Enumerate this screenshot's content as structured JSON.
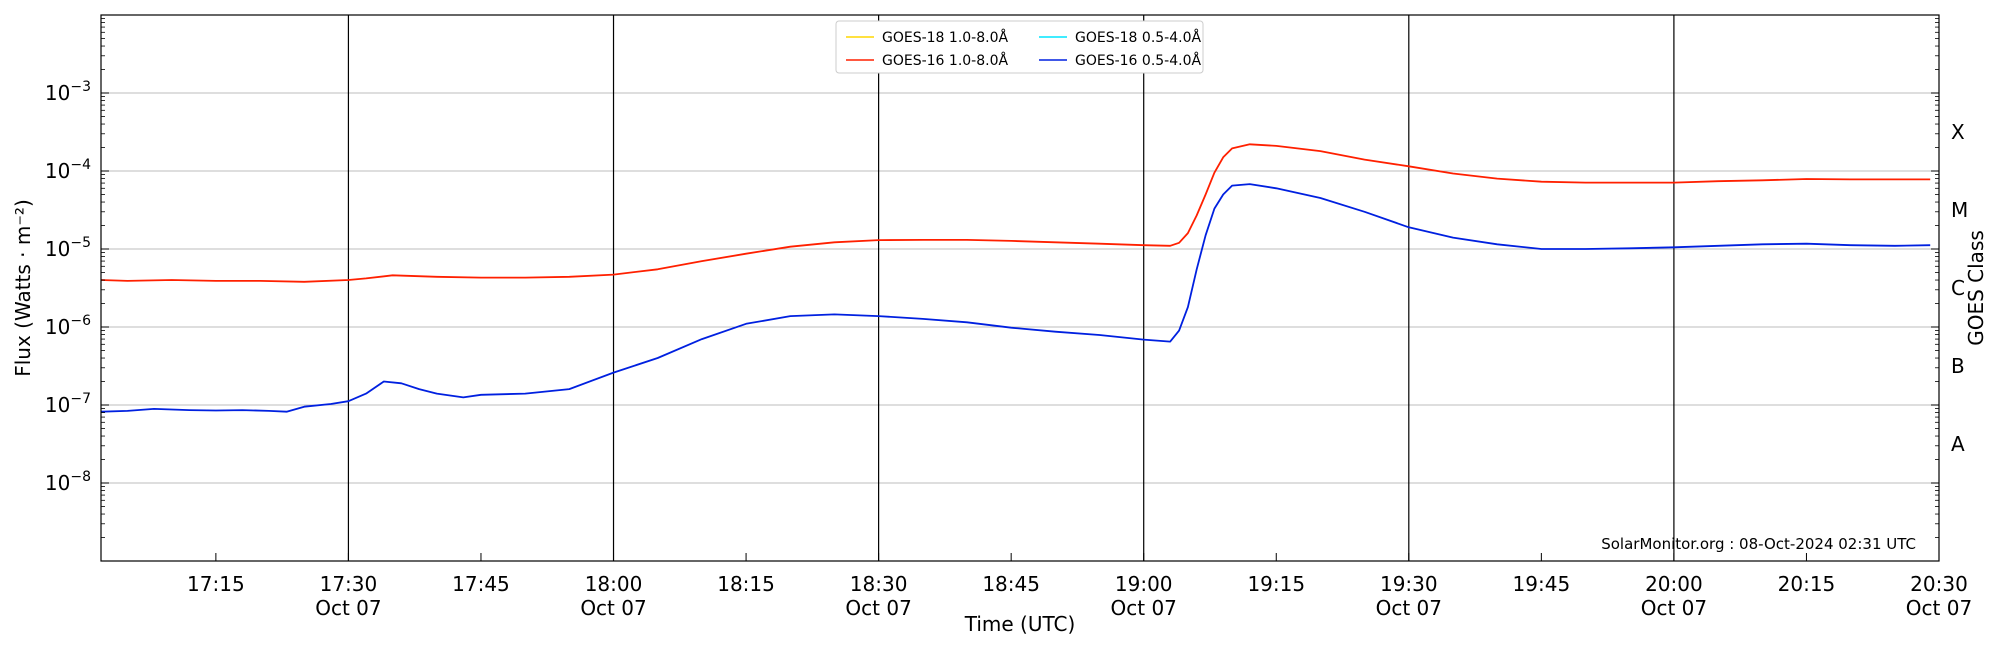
{
  "chart_data": {
    "type": "line",
    "xlabel": "Time (UTC)",
    "ylabel": "Flux (Watts · m⁻²)",
    "right_axis_label": "GOES Class",
    "y_scale": "log",
    "ylim": [
      1e-09,
      0.01
    ],
    "xlim": [
      "17:02",
      "20:30"
    ],
    "x_ticks": [
      {
        "t": "17:15",
        "label": "17:15",
        "date": ""
      },
      {
        "t": "17:30",
        "label": "17:30",
        "date": "Oct 07"
      },
      {
        "t": "17:45",
        "label": "17:45",
        "date": ""
      },
      {
        "t": "18:00",
        "label": "18:00",
        "date": "Oct 07"
      },
      {
        "t": "18:15",
        "label": "18:15",
        "date": ""
      },
      {
        "t": "18:30",
        "label": "18:30",
        "date": "Oct 07"
      },
      {
        "t": "18:45",
        "label": "18:45",
        "date": ""
      },
      {
        "t": "19:00",
        "label": "19:00",
        "date": "Oct 07"
      },
      {
        "t": "19:15",
        "label": "19:15",
        "date": ""
      },
      {
        "t": "19:30",
        "label": "19:30",
        "date": "Oct 07"
      },
      {
        "t": "19:45",
        "label": "19:45",
        "date": ""
      },
      {
        "t": "20:00",
        "label": "20:00",
        "date": "Oct 07"
      },
      {
        "t": "20:15",
        "label": "20:15",
        "date": ""
      },
      {
        "t": "20:30",
        "label": "20:30",
        "date": "Oct 07"
      }
    ],
    "y_ticks": [
      {
        "value": 1e-08,
        "base": "10",
        "exp": "−8"
      },
      {
        "value": 1e-07,
        "base": "10",
        "exp": "−7"
      },
      {
        "value": 1e-06,
        "base": "10",
        "exp": "−6"
      },
      {
        "value": 1e-05,
        "base": "10",
        "exp": "−5"
      },
      {
        "value": 0.0001,
        "base": "10",
        "exp": "−4"
      },
      {
        "value": 0.001,
        "base": "10",
        "exp": "−3"
      }
    ],
    "vertical_lines": [
      "17:30",
      "18:00",
      "18:30",
      "19:00",
      "19:30",
      "20:00"
    ],
    "grid": "horizontal",
    "goes_classes": [
      {
        "label": "A",
        "value": 3.16e-08
      },
      {
        "label": "B",
        "value": 3.16e-07
      },
      {
        "label": "C",
        "value": 3.16e-06
      },
      {
        "label": "M",
        "value": 3.16e-05
      },
      {
        "label": "X",
        "value": 0.000316
      }
    ],
    "legend": {
      "placement": "upper center",
      "columns": 2,
      "entries": [
        {
          "label": "GOES-18 1.0-8.0Å",
          "color": "#ffd700"
        },
        {
          "label": "GOES-16 1.0-8.0Å",
          "color": "#ff2000"
        },
        {
          "label": "GOES-18 0.5-4.0Å",
          "color": "#00e5ff"
        },
        {
          "label": "GOES-16 0.5-4.0Å",
          "color": "#0020e0"
        }
      ]
    },
    "annotation": "SolarMonitor.org : 08-Oct-2024 02:31 UTC",
    "series": [
      {
        "name": "GOES-16 1.0-8.0Å",
        "color": "#ff2000",
        "points": [
          [
            "17:02",
            4e-06
          ],
          [
            "17:05",
            3.9e-06
          ],
          [
            "17:10",
            4e-06
          ],
          [
            "17:15",
            3.9e-06
          ],
          [
            "17:20",
            3.9e-06
          ],
          [
            "17:25",
            3.8e-06
          ],
          [
            "17:30",
            4e-06
          ],
          [
            "17:32",
            4.2e-06
          ],
          [
            "17:35",
            4.6e-06
          ],
          [
            "17:40",
            4.4e-06
          ],
          [
            "17:45",
            4.3e-06
          ],
          [
            "17:50",
            4.3e-06
          ],
          [
            "17:55",
            4.4e-06
          ],
          [
            "18:00",
            4.7e-06
          ],
          [
            "18:05",
            5.5e-06
          ],
          [
            "18:10",
            7e-06
          ],
          [
            "18:15",
            8.7e-06
          ],
          [
            "18:20",
            1.07e-05
          ],
          [
            "18:25",
            1.22e-05
          ],
          [
            "18:30",
            1.3e-05
          ],
          [
            "18:35",
            1.31e-05
          ],
          [
            "18:40",
            1.31e-05
          ],
          [
            "18:45",
            1.27e-05
          ],
          [
            "18:50",
            1.22e-05
          ],
          [
            "18:55",
            1.17e-05
          ],
          [
            "19:00",
            1.12e-05
          ],
          [
            "19:03",
            1.1e-05
          ],
          [
            "19:04",
            1.2e-05
          ],
          [
            "19:05",
            1.6e-05
          ],
          [
            "19:06",
            2.7e-05
          ],
          [
            "19:07",
            5e-05
          ],
          [
            "19:08",
            9.5e-05
          ],
          [
            "19:09",
            0.00015
          ],
          [
            "19:10",
            0.000195
          ],
          [
            "19:12",
            0.00022
          ],
          [
            "19:15",
            0.00021
          ],
          [
            "19:20",
            0.00018
          ],
          [
            "19:25",
            0.00014
          ],
          [
            "19:30",
            0.000115
          ],
          [
            "19:35",
            9.3e-05
          ],
          [
            "19:40",
            8e-05
          ],
          [
            "19:45",
            7.3e-05
          ],
          [
            "19:50",
            7.1e-05
          ],
          [
            "19:55",
            7.1e-05
          ],
          [
            "20:00",
            7.1e-05
          ],
          [
            "20:05",
            7.4e-05
          ],
          [
            "20:10",
            7.6e-05
          ],
          [
            "20:15",
            7.9e-05
          ],
          [
            "20:20",
            7.8e-05
          ],
          [
            "20:25",
            7.8e-05
          ],
          [
            "20:29",
            7.8e-05
          ]
        ]
      },
      {
        "name": "GOES-16 0.5-4.0Å",
        "color": "#0020e0",
        "points": [
          [
            "17:02",
            8.2e-08
          ],
          [
            "17:05",
            8.4e-08
          ],
          [
            "17:08",
            8.9e-08
          ],
          [
            "17:12",
            8.6e-08
          ],
          [
            "17:15",
            8.5e-08
          ],
          [
            "17:18",
            8.6e-08
          ],
          [
            "17:21",
            8.4e-08
          ],
          [
            "17:23",
            8.2e-08
          ],
          [
            "17:25",
            9.5e-08
          ],
          [
            "17:28",
            1.03e-07
          ],
          [
            "17:30",
            1.12e-07
          ],
          [
            "17:32",
            1.4e-07
          ],
          [
            "17:34",
            2e-07
          ],
          [
            "17:36",
            1.9e-07
          ],
          [
            "17:38",
            1.6e-07
          ],
          [
            "17:40",
            1.4e-07
          ],
          [
            "17:43",
            1.25e-07
          ],
          [
            "17:45",
            1.35e-07
          ],
          [
            "17:50",
            1.4e-07
          ],
          [
            "17:55",
            1.6e-07
          ],
          [
            "18:00",
            2.6e-07
          ],
          [
            "18:05",
            4e-07
          ],
          [
            "18:10",
            7e-07
          ],
          [
            "18:15",
            1.1e-06
          ],
          [
            "18:20",
            1.38e-06
          ],
          [
            "18:25",
            1.45e-06
          ],
          [
            "18:30",
            1.38e-06
          ],
          [
            "18:35",
            1.27e-06
          ],
          [
            "18:40",
            1.15e-06
          ],
          [
            "18:45",
            9.8e-07
          ],
          [
            "18:50",
            8.7e-07
          ],
          [
            "18:55",
            7.9e-07
          ],
          [
            "19:00",
            6.9e-07
          ],
          [
            "19:03",
            6.5e-07
          ],
          [
            "19:04",
            9e-07
          ],
          [
            "19:05",
            1.8e-06
          ],
          [
            "19:06",
            5.5e-06
          ],
          [
            "19:07",
            1.5e-05
          ],
          [
            "19:08",
            3.3e-05
          ],
          [
            "19:09",
            5e-05
          ],
          [
            "19:10",
            6.5e-05
          ],
          [
            "19:12",
            6.8e-05
          ],
          [
            "19:15",
            6e-05
          ],
          [
            "19:20",
            4.5e-05
          ],
          [
            "19:25",
            3e-05
          ],
          [
            "19:30",
            1.9e-05
          ],
          [
            "19:35",
            1.4e-05
          ],
          [
            "19:40",
            1.15e-05
          ],
          [
            "19:45",
            1e-05
          ],
          [
            "19:50",
            1e-05
          ],
          [
            "19:55",
            1.02e-05
          ],
          [
            "20:00",
            1.05e-05
          ],
          [
            "20:05",
            1.1e-05
          ],
          [
            "20:10",
            1.15e-05
          ],
          [
            "20:15",
            1.17e-05
          ],
          [
            "20:20",
            1.12e-05
          ],
          [
            "20:25",
            1.1e-05
          ],
          [
            "20:29",
            1.12e-05
          ]
        ]
      }
    ]
  }
}
